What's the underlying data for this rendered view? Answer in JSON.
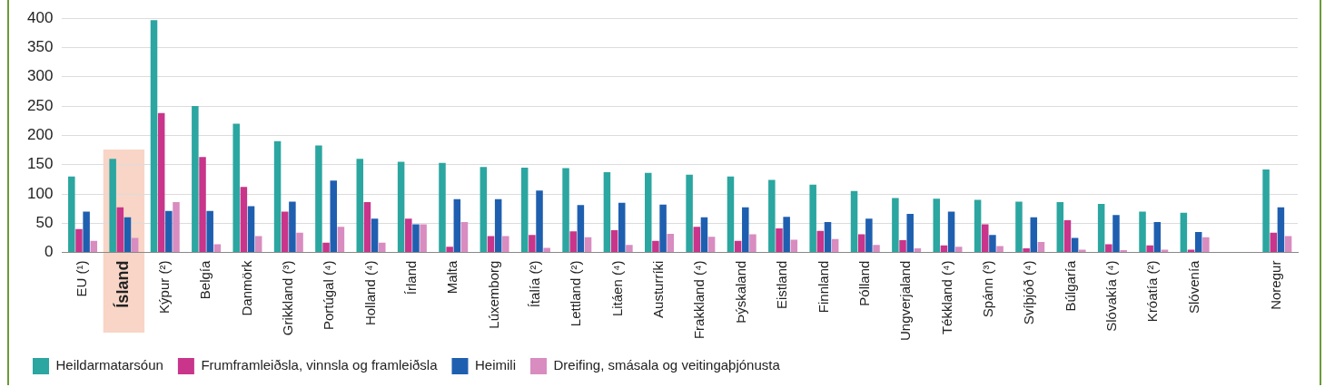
{
  "chart_data": {
    "type": "bar",
    "categories": [
      "EU (¹)",
      "Ísland",
      "Kýpur (²)",
      "Belgía",
      "Danmörk",
      "Grikkland (³)",
      "Portúgal (⁴)",
      "Holland (⁴)",
      "Írland",
      "Malta",
      "Lúxemborg",
      "Ítalía (²)",
      "Lettland (²)",
      "Litáen (⁴)",
      "Austurríki",
      "Frakkland (⁴)",
      "Þýskaland",
      "Eistland",
      "Finnland",
      "Pólland",
      "Ungverjaland",
      "Tékkland (⁴)",
      "Spánn (³)",
      "Svíþjóð (⁴)",
      "Búlgaría",
      "Slóvakía (⁴)",
      "Króatía (²)",
      "Slóvenía",
      null,
      "Noregur"
    ],
    "series": [
      {
        "name": "Heildarmatarsóun",
        "color": "#2ba6a0",
        "values": [
          130,
          160,
          397,
          250,
          220,
          190,
          183,
          160,
          155,
          153,
          146,
          145,
          144,
          137,
          136,
          133,
          130,
          124,
          116,
          105,
          93,
          92,
          90,
          87,
          86,
          83,
          70,
          68,
          null,
          142
        ]
      },
      {
        "name": "Frumframleiðsla, vinnsla og framleiðsla",
        "color": "#c8358a",
        "values": [
          40,
          77,
          238,
          163,
          112,
          70,
          17,
          86,
          58,
          10,
          28,
          30,
          36,
          38,
          20,
          44,
          20,
          41,
          37,
          31,
          21,
          12,
          48,
          7,
          55,
          14,
          12,
          5,
          null,
          34
        ]
      },
      {
        "name": "Heimili",
        "color": "#1f5fb0",
        "values": [
          70,
          60,
          71,
          71,
          79,
          87,
          123,
          58,
          48,
          91,
          91,
          106,
          81,
          85,
          82,
          60,
          77,
          61,
          52,
          58,
          66,
          70,
          30,
          60,
          25,
          64,
          52,
          35,
          null,
          77
        ]
      },
      {
        "name": "Dreifing, smásala og veitingaþjónusta",
        "color": "#d88cc0",
        "values": [
          20,
          25,
          86,
          14,
          28,
          34,
          44,
          17,
          48,
          52,
          28,
          8,
          26,
          13,
          32,
          27,
          31,
          22,
          23,
          13,
          7,
          10,
          11,
          18,
          5,
          4,
          5,
          26,
          null,
          28
        ]
      }
    ],
    "ylim": [
      0,
      400
    ],
    "yticks": [
      0,
      50,
      100,
      150,
      200,
      250,
      300,
      350,
      400
    ],
    "grid": "y",
    "legend": "bottom",
    "bands": [
      {
        "axis": "x",
        "from": "Ísland",
        "to": "Ísland",
        "color": "#f8d5c6"
      }
    ]
  }
}
